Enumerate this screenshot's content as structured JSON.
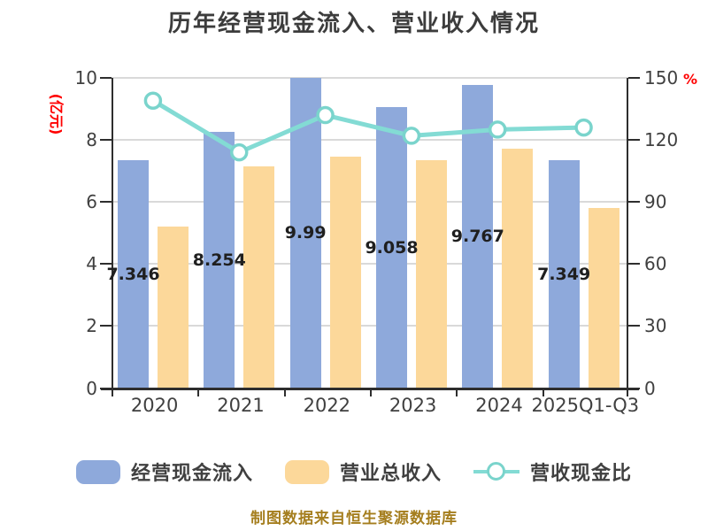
{
  "chart_data": {
    "type": "bar",
    "subtype": "grouped-bars-with-line-combo",
    "title": "历年经营现金流入、营业收入情况",
    "categories": [
      "2020",
      "2021",
      "2022",
      "2023",
      "2024",
      "2025Q1-Q3"
    ],
    "series": [
      {
        "name": "经营现金流入",
        "type": "bar",
        "axis": "left",
        "color": "#8EA9DB",
        "values": [
          7.346,
          8.254,
          9.99,
          9.058,
          9.767,
          7.349
        ],
        "data_labels": [
          "7.346",
          "8.254",
          "9.99",
          "9.058",
          "9.767",
          "7.349"
        ]
      },
      {
        "name": "营业总收入",
        "type": "bar",
        "axis": "left",
        "color": "#FCD89A",
        "values": [
          5.22,
          7.15,
          7.45,
          7.36,
          7.73,
          5.82
        ]
      },
      {
        "name": "营收现金比",
        "type": "line",
        "axis": "right",
        "color": "#83DBD4",
        "marker": "white-circle",
        "values": [
          139,
          114,
          132,
          122,
          125,
          126
        ]
      }
    ],
    "left_axis": {
      "unit": "(亿元)",
      "min": 0,
      "max": 10,
      "tick_labels": [
        "0",
        "2",
        "4",
        "6",
        "8",
        "10"
      ]
    },
    "right_axis": {
      "unit": "%",
      "min": 0,
      "max": 150,
      "tick_labels": [
        "0",
        "30",
        "60",
        "90",
        "120",
        "150"
      ]
    },
    "grid": true,
    "legend_position": "bottom"
  },
  "legend": {
    "items": [
      {
        "label": "经营现金流入",
        "swatch": "bar",
        "color": "#8EA9DB"
      },
      {
        "label": "营业总收入",
        "swatch": "bar",
        "color": "#FCD89A"
      },
      {
        "label": "营收现金比",
        "swatch": "line-marker",
        "color": "#83DBD4"
      }
    ]
  },
  "footer": {
    "source_note": "制图数据来自恒生聚源数据库"
  },
  "colors": {
    "background": "#FFFFFF",
    "bar_blue": "#8EA9DB",
    "bar_orange": "#FCD89A",
    "line_teal": "#83DBD4",
    "marker_fill": "#FFFFFF",
    "marker_ring": "#7AD4CC",
    "axis_line": "#2E2E2E",
    "gridline": "#D9D9D9",
    "tick_text": "#404040",
    "title_text": "#3C3C3C",
    "value_label_text": "#1F1F1F",
    "axis_unit_red": "#FF0000",
    "footer_text": "#A57E1E"
  }
}
